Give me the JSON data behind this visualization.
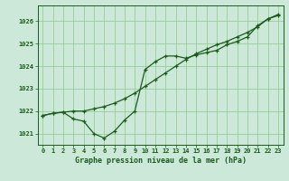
{
  "title": "Graphe pression niveau de la mer (hPa)",
  "bg_color": "#cce8d8",
  "grid_color": "#99cc99",
  "line_color": "#1a5c1a",
  "marker_color": "#1a5c1a",
  "xlim": [
    -0.5,
    23.5
  ],
  "ylim": [
    1020.5,
    1026.7
  ],
  "yticks": [
    1021,
    1022,
    1023,
    1024,
    1025,
    1026
  ],
  "xticks": [
    0,
    1,
    2,
    3,
    4,
    5,
    6,
    7,
    8,
    9,
    10,
    11,
    12,
    13,
    14,
    15,
    16,
    17,
    18,
    19,
    20,
    21,
    22,
    23
  ],
  "series1": [
    1021.8,
    1021.9,
    1021.95,
    1021.65,
    1021.55,
    1021.0,
    1020.8,
    1021.1,
    1021.6,
    1022.0,
    1023.85,
    1024.2,
    1024.45,
    1024.45,
    1024.35,
    1024.5,
    1024.6,
    1024.7,
    1024.95,
    1025.1,
    1025.3,
    1025.8,
    1026.1,
    1026.3
  ],
  "series2": [
    1021.8,
    1021.9,
    1021.95,
    1022.0,
    1022.0,
    1022.1,
    1022.2,
    1022.35,
    1022.55,
    1022.8,
    1023.1,
    1023.4,
    1023.7,
    1024.0,
    1024.3,
    1024.55,
    1024.75,
    1024.95,
    1025.1,
    1025.3,
    1025.5,
    1025.75,
    1026.1,
    1026.25
  ]
}
